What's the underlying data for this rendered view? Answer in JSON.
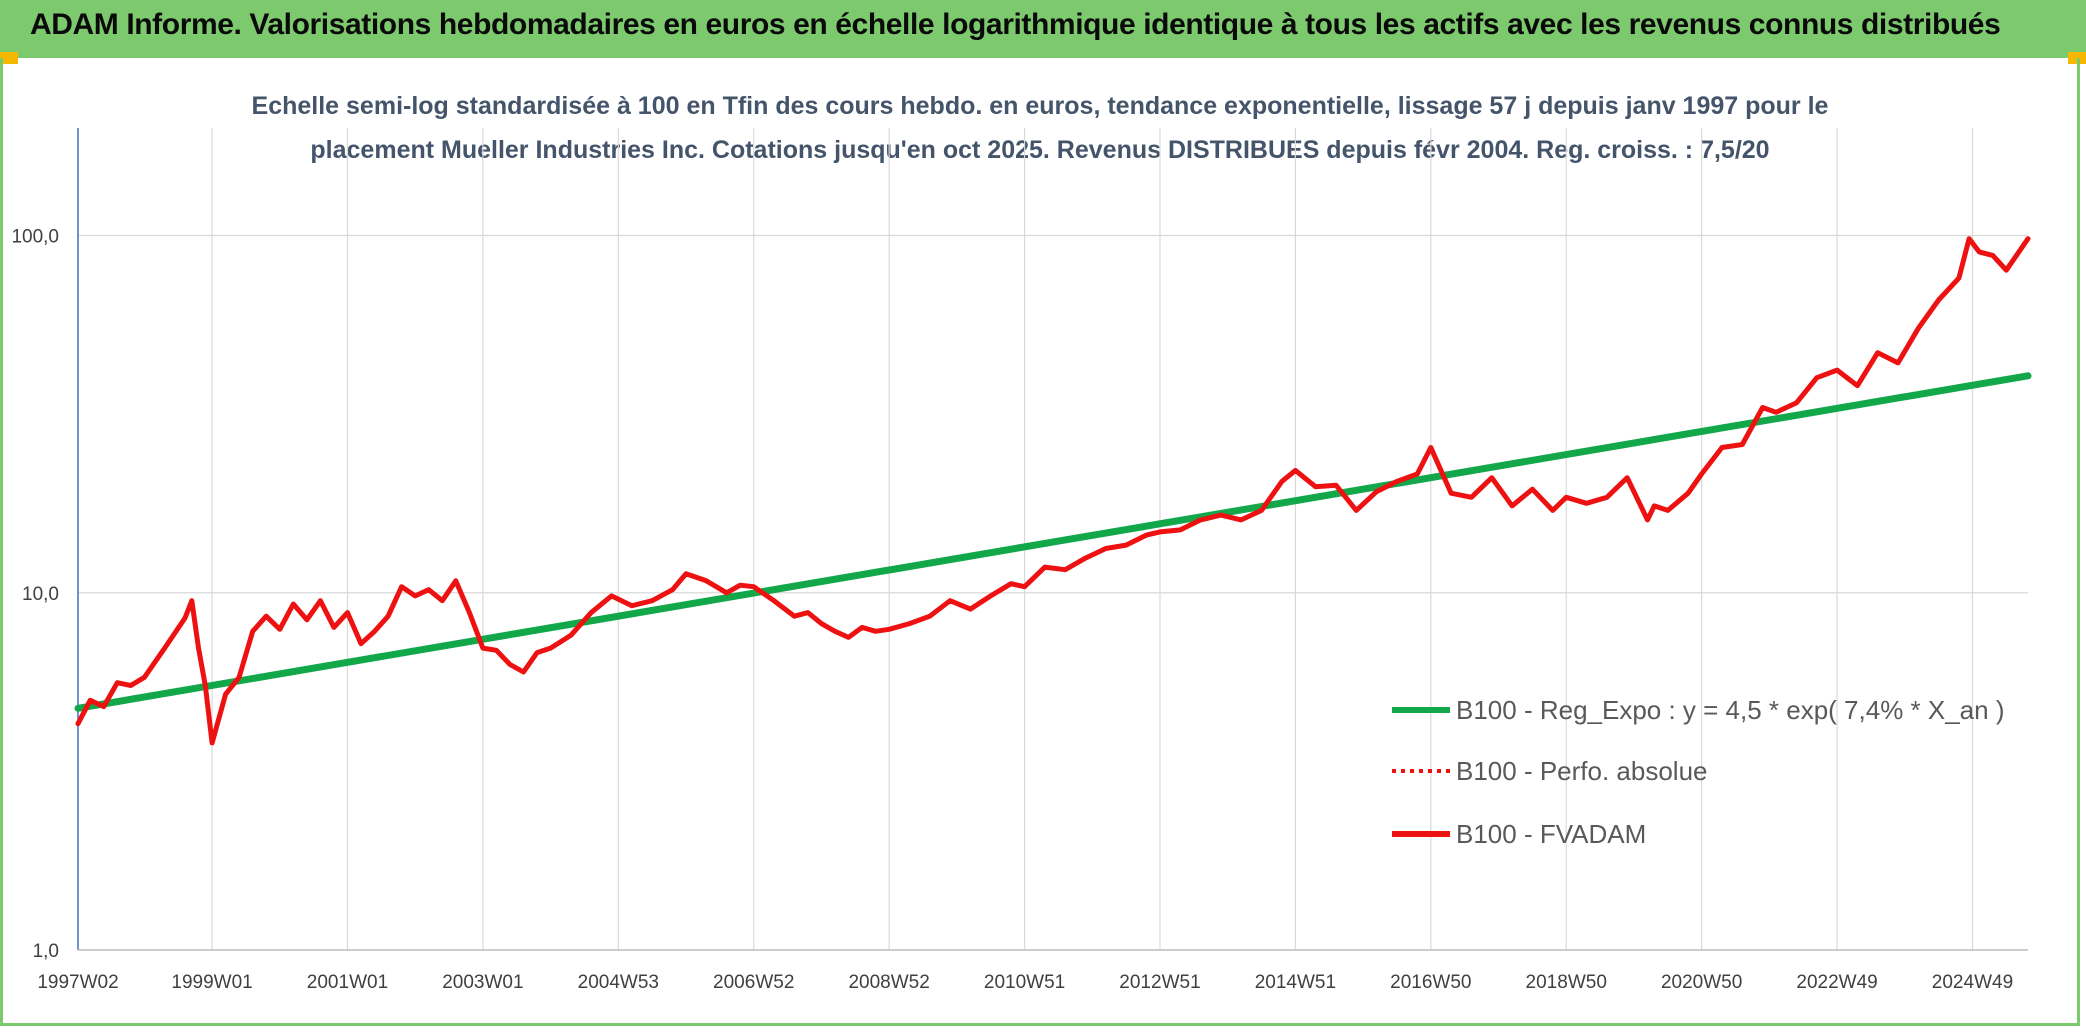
{
  "header": {
    "title": "ADAM Informe. Valorisations hebdomadaires en euros en échelle logarithmique identique à tous les actifs avec les revenus connus distribués"
  },
  "colors": {
    "header_bg": "#7dca6e",
    "regression": "#12a84a",
    "price": "#ee1111",
    "grid": "#d9d9d9",
    "axis": "#4472c4",
    "corner": "#f5b800"
  },
  "chart_data": {
    "type": "line",
    "title_lines": [
      "Echelle semi-log standardisée à 100 en Tfin des cours hebdo. en euros, tendance exponentielle, lissage 57 j depuis janv 1997 pour le",
      "placement Mueller Industries Inc. Cotations jusqu'en oct 2025. Revenus DISTRIBUES depuis févr 2004. Reg. croiss. : 7,5/20"
    ],
    "y_scale": "log",
    "ylim": [
      1,
      200
    ],
    "xlim": [
      1997.02,
      2025.82
    ],
    "y_ticks": [
      {
        "value": 1,
        "label": "1,0"
      },
      {
        "value": 10,
        "label": "10,0"
      },
      {
        "value": 100,
        "label": "100,0"
      }
    ],
    "x_ticks": [
      {
        "value": 1997.02,
        "label": "1997W02"
      },
      {
        "value": 1999.0,
        "label": "1999W01"
      },
      {
        "value": 2001.0,
        "label": "2001W01"
      },
      {
        "value": 2003.0,
        "label": "2003W01"
      },
      {
        "value": 2005.0,
        "label": "2004W53"
      },
      {
        "value": 2007.0,
        "label": "2006W52"
      },
      {
        "value": 2009.0,
        "label": "2008W52"
      },
      {
        "value": 2011.0,
        "label": "2010W51"
      },
      {
        "value": 2013.0,
        "label": "2012W51"
      },
      {
        "value": 2015.0,
        "label": "2014W51"
      },
      {
        "value": 2017.0,
        "label": "2016W50"
      },
      {
        "value": 2019.0,
        "label": "2018W50"
      },
      {
        "value": 2021.0,
        "label": "2020W50"
      },
      {
        "value": 2023.0,
        "label": "2022W49"
      },
      {
        "value": 2025.0,
        "label": "2024W49"
      }
    ],
    "grid": {
      "horizontal": true,
      "vertical": true
    },
    "legend_position": "right",
    "series": [
      {
        "name": "B100 - Reg_Expo : y = 4,5 * exp( 7,4% *  X_an )",
        "style": "solid",
        "color": "#12a84a",
        "x": [
          1997.02,
          2025.82
        ],
        "y": [
          4.75,
          40.5
        ]
      },
      {
        "name": "B100 - Perfo. absolue",
        "style": "dotted",
        "color": "#ee1111",
        "x": [],
        "y": []
      },
      {
        "name": "B100 - FVADAM",
        "style": "solid",
        "color": "#ee1111",
        "x": [
          1997.02,
          1997.2,
          1997.4,
          1997.6,
          1997.8,
          1998.0,
          1998.3,
          1998.6,
          1998.7,
          1998.8,
          1998.9,
          1999.0,
          1999.2,
          1999.4,
          1999.6,
          1999.8,
          2000.0,
          2000.2,
          2000.4,
          2000.6,
          2000.8,
          2001.0,
          2001.2,
          2001.4,
          2001.6,
          2001.8,
          2002.0,
          2002.2,
          2002.4,
          2002.6,
          2002.8,
          2003.0,
          2003.2,
          2003.4,
          2003.6,
          2003.8,
          2004.0,
          2004.3,
          2004.6,
          2004.9,
          2005.2,
          2005.5,
          2005.8,
          2006.0,
          2006.3,
          2006.6,
          2006.8,
          2007.0,
          2007.3,
          2007.6,
          2007.8,
          2008.0,
          2008.2,
          2008.4,
          2008.6,
          2008.8,
          2009.0,
          2009.3,
          2009.6,
          2009.9,
          2010.2,
          2010.5,
          2010.8,
          2011.0,
          2011.3,
          2011.6,
          2011.9,
          2012.2,
          2012.5,
          2012.8,
          2013.0,
          2013.3,
          2013.6,
          2013.9,
          2014.2,
          2014.5,
          2014.8,
          2015.0,
          2015.3,
          2015.6,
          2015.9,
          2016.2,
          2016.5,
          2016.8,
          2017.0,
          2017.3,
          2017.6,
          2017.9,
          2018.2,
          2018.5,
          2018.8,
          2019.0,
          2019.3,
          2019.6,
          2019.9,
          2020.2,
          2020.3,
          2020.5,
          2020.8,
          2021.0,
          2021.3,
          2021.6,
          2021.9,
          2022.1,
          2022.4,
          2022.7,
          2023.0,
          2023.3,
          2023.6,
          2023.9,
          2024.2,
          2024.5,
          2024.8,
          2024.95,
          2025.1,
          2025.3,
          2025.5,
          2025.82
        ],
        "y": [
          4.3,
          5.0,
          4.8,
          5.6,
          5.5,
          5.8,
          7.0,
          8.5,
          9.5,
          7.0,
          5.5,
          3.8,
          5.2,
          5.8,
          7.8,
          8.6,
          7.9,
          9.3,
          8.4,
          9.5,
          8.0,
          8.8,
          7.2,
          7.8,
          8.6,
          10.4,
          9.8,
          10.2,
          9.5,
          10.8,
          8.8,
          7.0,
          6.9,
          6.3,
          6.0,
          6.8,
          7.0,
          7.6,
          8.8,
          9.8,
          9.2,
          9.5,
          10.2,
          11.3,
          10.8,
          10.0,
          10.5,
          10.4,
          9.5,
          8.6,
          8.8,
          8.2,
          7.8,
          7.5,
          8.0,
          7.8,
          7.9,
          8.2,
          8.6,
          9.5,
          9.0,
          9.8,
          10.6,
          10.4,
          11.8,
          11.6,
          12.5,
          13.3,
          13.6,
          14.5,
          14.8,
          15.0,
          16.0,
          16.5,
          16.0,
          17.0,
          20.5,
          22.0,
          19.8,
          20.0,
          17.0,
          19.2,
          20.5,
          21.5,
          25.5,
          19.0,
          18.5,
          21.0,
          17.5,
          19.5,
          17.0,
          18.5,
          17.8,
          18.5,
          21.0,
          16.0,
          17.5,
          17.0,
          19.0,
          21.5,
          25.5,
          26.0,
          33.0,
          32.0,
          34.0,
          40.0,
          42.0,
          38.0,
          47.0,
          44.0,
          55.0,
          66.0,
          76.0,
          98.0,
          90.0,
          88.0,
          80.0,
          98.0
        ]
      }
    ]
  }
}
